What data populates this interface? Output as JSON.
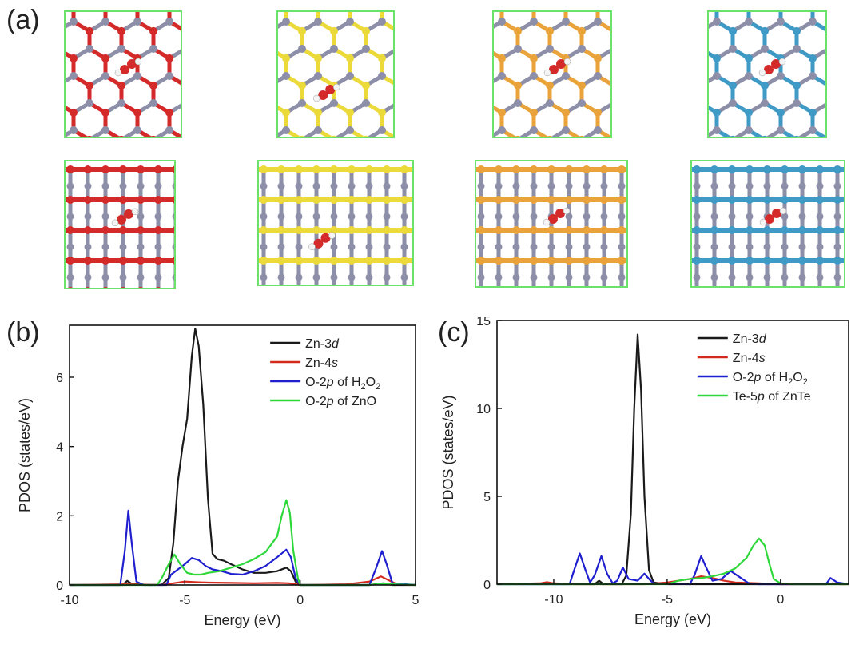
{
  "panels": {
    "a": "(a)",
    "b": "(b)",
    "c": "(c)"
  },
  "structures": {
    "top_colors": [
      "#d42a2a",
      "#ecd93a",
      "#eaa33a",
      "#3f9ac6"
    ],
    "side_colors": [
      "#d42a2a",
      "#ecd93a",
      "#eaa33a",
      "#3f9ac6"
    ],
    "zn_color": "#8d8fa8",
    "frame_color": "#6be36b"
  },
  "chart_data": [
    {
      "type": "line",
      "panel": "(b)",
      "xlabel": "Energy (eV)",
      "ylabel": "PDOS (states/eV)",
      "xlim": [
        -10,
        5
      ],
      "ylim": [
        0,
        7.5
      ],
      "xticks": [
        -10,
        -5,
        0,
        5
      ],
      "yticks": [
        0,
        2,
        4,
        6
      ],
      "legend_position": "top-right",
      "series": [
        {
          "name": "Zn-3d",
          "label_pre": "Zn-3",
          "label_it": "d",
          "label_sub": "",
          "label_post": "",
          "color": "#1a1a1a",
          "points": [
            [
              -10,
              0
            ],
            [
              -7.7,
              0
            ],
            [
              -7.5,
              0.12
            ],
            [
              -7.3,
              0.03
            ],
            [
              -6.5,
              0
            ],
            [
              -6,
              0.01
            ],
            [
              -5.7,
              0.2
            ],
            [
              -5.5,
              1.2
            ],
            [
              -5.3,
              3.0
            ],
            [
              -5.1,
              4.0
            ],
            [
              -4.9,
              4.8
            ],
            [
              -4.7,
              6.6
            ],
            [
              -4.55,
              7.4
            ],
            [
              -4.4,
              6.9
            ],
            [
              -4.2,
              5.2
            ],
            [
              -4.0,
              2.5
            ],
            [
              -3.8,
              0.9
            ],
            [
              -3.6,
              0.75
            ],
            [
              -3.3,
              0.7
            ],
            [
              -3.0,
              0.6
            ],
            [
              -2.5,
              0.45
            ],
            [
              -2.0,
              0.35
            ],
            [
              -1.5,
              0.35
            ],
            [
              -1.0,
              0.4
            ],
            [
              -0.6,
              0.5
            ],
            [
              -0.4,
              0.4
            ],
            [
              -0.2,
              0.1
            ],
            [
              0,
              0
            ],
            [
              3,
              0
            ],
            [
              3.6,
              0.05
            ],
            [
              4,
              0
            ],
            [
              5,
              0
            ]
          ]
        },
        {
          "name": "Zn-4s",
          "label_pre": "Zn-4",
          "label_it": "s",
          "label_sub": "",
          "label_post": "",
          "color": "#d42a1e",
          "points": [
            [
              -10,
              0
            ],
            [
              -7.5,
              0.02
            ],
            [
              -6,
              0
            ],
            [
              -5.5,
              0.05
            ],
            [
              -5,
              0.1
            ],
            [
              -4.5,
              0.08
            ],
            [
              -4,
              0.07
            ],
            [
              -3,
              0.06
            ],
            [
              -2,
              0.05
            ],
            [
              -1,
              0.06
            ],
            [
              -0.5,
              0.05
            ],
            [
              0,
              0
            ],
            [
              2,
              0.02
            ],
            [
              3,
              0.1
            ],
            [
              3.5,
              0.25
            ],
            [
              3.8,
              0.15
            ],
            [
              4.2,
              0.02
            ],
            [
              5,
              0
            ]
          ]
        },
        {
          "name": "O-2p of H2O2",
          "label_pre": "O-2",
          "label_it": "p",
          "label_sub": "2",
          "label_post": " of H",
          "color": "#1f1fd0",
          "points": [
            [
              -10,
              0
            ],
            [
              -7.8,
              0
            ],
            [
              -7.6,
              1.0
            ],
            [
              -7.45,
              2.15
            ],
            [
              -7.3,
              1.2
            ],
            [
              -7.1,
              0.1
            ],
            [
              -6.8,
              0
            ],
            [
              -5.8,
              0
            ],
            [
              -5.6,
              0.3
            ],
            [
              -5.3,
              0.45
            ],
            [
              -5.0,
              0.6
            ],
            [
              -4.7,
              0.78
            ],
            [
              -4.4,
              0.72
            ],
            [
              -4.1,
              0.55
            ],
            [
              -3.8,
              0.45
            ],
            [
              -3.4,
              0.4
            ],
            [
              -3,
              0.32
            ],
            [
              -2.5,
              0.3
            ],
            [
              -2,
              0.4
            ],
            [
              -1.5,
              0.55
            ],
            [
              -1.0,
              0.8
            ],
            [
              -0.6,
              1.02
            ],
            [
              -0.4,
              0.8
            ],
            [
              -0.2,
              0.2
            ],
            [
              0,
              0
            ],
            [
              3.0,
              0
            ],
            [
              3.3,
              0.5
            ],
            [
              3.55,
              0.98
            ],
            [
              3.75,
              0.6
            ],
            [
              4.0,
              0.05
            ],
            [
              5,
              0
            ]
          ]
        },
        {
          "name": "O-2p of ZnO",
          "label_pre": "O-2",
          "label_it": "p",
          "label_sub": "",
          "label_post": " of ZnO",
          "color": "#2fd83a",
          "points": [
            [
              -10,
              0
            ],
            [
              -6.2,
              0
            ],
            [
              -6.0,
              0.2
            ],
            [
              -5.7,
              0.6
            ],
            [
              -5.45,
              0.88
            ],
            [
              -5.2,
              0.6
            ],
            [
              -4.9,
              0.35
            ],
            [
              -4.6,
              0.3
            ],
            [
              -4.3,
              0.3
            ],
            [
              -4.0,
              0.35
            ],
            [
              -3.5,
              0.4
            ],
            [
              -3,
              0.5
            ],
            [
              -2.5,
              0.6
            ],
            [
              -2,
              0.75
            ],
            [
              -1.5,
              0.95
            ],
            [
              -1.0,
              1.4
            ],
            [
              -0.8,
              2.0
            ],
            [
              -0.6,
              2.45
            ],
            [
              -0.45,
              2.1
            ],
            [
              -0.3,
              1.0
            ],
            [
              -0.1,
              0.2
            ],
            [
              0,
              0
            ],
            [
              3,
              0
            ],
            [
              3.5,
              0.03
            ],
            [
              5,
              0
            ]
          ]
        }
      ]
    },
    {
      "type": "line",
      "panel": "(c)",
      "xlabel": "Energy (eV)",
      "ylabel": "PDOS (states/eV)",
      "xlim": [
        -12.5,
        3
      ],
      "ylim": [
        0,
        15
      ],
      "xticks": [
        -10,
        -5,
        0
      ],
      "yticks": [
        0,
        5,
        10,
        15
      ],
      "legend_position": "top-right",
      "series": [
        {
          "name": "Zn-3d",
          "label_pre": "Zn-3",
          "label_it": "d",
          "label_sub": "",
          "label_post": "",
          "color": "#1a1a1a",
          "points": [
            [
              -12.5,
              0
            ],
            [
              -8.2,
              0
            ],
            [
              -8,
              0.2
            ],
            [
              -7.8,
              0
            ],
            [
              -7,
              0
            ],
            [
              -6.8,
              0.5
            ],
            [
              -6.6,
              4
            ],
            [
              -6.45,
              10
            ],
            [
              -6.3,
              14.2
            ],
            [
              -6.15,
              11
            ],
            [
              -6.0,
              5
            ],
            [
              -5.8,
              0.8
            ],
            [
              -5.6,
              0.1
            ],
            [
              -5,
              0
            ],
            [
              3,
              0
            ]
          ]
        },
        {
          "name": "Zn-4s",
          "label_pre": "Zn-4",
          "label_it": "s",
          "label_sub": "",
          "label_post": "",
          "color": "#d42a1e",
          "points": [
            [
              -12.5,
              0
            ],
            [
              -10.6,
              0.05
            ],
            [
              -10.3,
              0.12
            ],
            [
              -10,
              0.05
            ],
            [
              -9,
              0
            ],
            [
              -6,
              0
            ],
            [
              -5,
              0.1
            ],
            [
              -4,
              0.3
            ],
            [
              -3.5,
              0.45
            ],
            [
              -3,
              0.35
            ],
            [
              -2.5,
              0.2
            ],
            [
              -2,
              0.1
            ],
            [
              -1,
              0.05
            ],
            [
              0,
              0
            ],
            [
              2,
              0
            ],
            [
              2.3,
              0.05
            ],
            [
              2.6,
              0
            ],
            [
              3,
              0
            ]
          ]
        },
        {
          "name": "O-2p of H2O2",
          "label_pre": "O-2",
          "label_it": "p",
          "label_sub": "2",
          "label_post": " of H",
          "color": "#1f1fd0",
          "points": [
            [
              -12.5,
              0
            ],
            [
              -9.3,
              0
            ],
            [
              -9.1,
              0.8
            ],
            [
              -8.85,
              1.75
            ],
            [
              -8.6,
              0.8
            ],
            [
              -8.4,
              0.1
            ],
            [
              -8.2,
              0.5
            ],
            [
              -7.9,
              1.6
            ],
            [
              -7.65,
              0.6
            ],
            [
              -7.4,
              0.05
            ],
            [
              -7.2,
              0.2
            ],
            [
              -6.95,
              0.95
            ],
            [
              -6.7,
              0.3
            ],
            [
              -6.3,
              0.2
            ],
            [
              -6.0,
              0.6
            ],
            [
              -5.8,
              0.3
            ],
            [
              -5.6,
              0.05
            ],
            [
              -4,
              0
            ],
            [
              -3.8,
              0.5
            ],
            [
              -3.5,
              1.6
            ],
            [
              -3.3,
              1.0
            ],
            [
              -3.0,
              0.2
            ],
            [
              -2.6,
              0.3
            ],
            [
              -2.2,
              0.75
            ],
            [
              -1.8,
              0.4
            ],
            [
              -1.4,
              0.05
            ],
            [
              -1,
              0
            ],
            [
              2,
              0
            ],
            [
              2.2,
              0.35
            ],
            [
              2.5,
              0.1
            ],
            [
              3,
              0
            ]
          ]
        },
        {
          "name": "Te-5p of ZnTe",
          "label_pre": "Te-5",
          "label_it": "p",
          "label_sub": "",
          "label_post": " of ZnTe",
          "color": "#2fd83a",
          "points": [
            [
              -12.5,
              0
            ],
            [
              -5,
              0
            ],
            [
              -4.5,
              0.2
            ],
            [
              -4,
              0.3
            ],
            [
              -3.5,
              0.35
            ],
            [
              -3,
              0.45
            ],
            [
              -2.5,
              0.6
            ],
            [
              -2,
              0.9
            ],
            [
              -1.5,
              1.5
            ],
            [
              -1.2,
              2.2
            ],
            [
              -0.95,
              2.6
            ],
            [
              -0.7,
              2.2
            ],
            [
              -0.5,
              1.2
            ],
            [
              -0.3,
              0.3
            ],
            [
              0,
              0.05
            ],
            [
              0.5,
              0
            ],
            [
              3,
              0
            ]
          ]
        }
      ]
    }
  ]
}
